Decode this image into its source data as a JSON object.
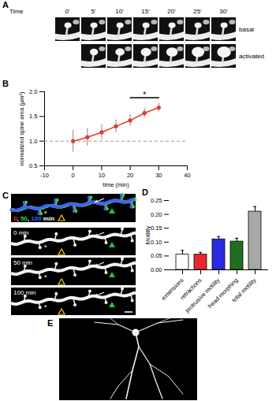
{
  "panel_A": {
    "panel": "A",
    "time_label": "Time",
    "times": [
      "0'",
      "5'",
      "10'",
      "15'",
      "20'",
      "25'",
      "30'"
    ],
    "rows": [
      "basal",
      "activated"
    ]
  },
  "panel_C": {
    "panel": "C",
    "merge_label_parts": [
      {
        "text": "0",
        "color": "#ff2020"
      },
      {
        "text": ", ",
        "color": "#ffffff"
      },
      {
        "text": "50",
        "color": "#20e020"
      },
      {
        "text": ", ",
        "color": "#ffffff"
      },
      {
        "text": "100",
        "color": "#4060ff"
      },
      {
        "text": " min",
        "color": "#ffffff"
      }
    ],
    "frames": [
      "0 min",
      "50 min",
      "100 min"
    ],
    "marker_text": "*"
  },
  "panel_E": {
    "panel": "E"
  },
  "chart_data": [
    {
      "panel": "B",
      "type": "line",
      "x": [
        0,
        5,
        10,
        15,
        20,
        25,
        30
      ],
      "values": [
        1.0,
        1.08,
        1.18,
        1.3,
        1.42,
        1.57,
        1.68
      ],
      "errors": [
        0.22,
        0.18,
        0.15,
        0.13,
        0.12,
        0.1,
        0.09
      ],
      "color": "#e8392d",
      "marker": "circle",
      "xlabel": "time (min)",
      "ylabel": "normalized spine area (µm²)",
      "xlim": [
        -10,
        40
      ],
      "xticks": [
        -10,
        0,
        10,
        20,
        30,
        40
      ],
      "ylim": [
        0.5,
        2.0
      ],
      "yticks": [
        0.5,
        {
          "value": 1.0,
          "label": "1.0"
        },
        1.5,
        {
          "value": 2.0,
          "label": "2.0"
        }
      ],
      "reference_y": 1,
      "significance": {
        "x1": 20,
        "x2": 30,
        "y": 1.88,
        "text": "*"
      }
    },
    {
      "panel": "D",
      "type": "bar",
      "categories": [
        "extensions",
        "retractions",
        "protrusive motility",
        "head morphing",
        "total motility"
      ],
      "values": [
        0.055,
        0.055,
        0.11,
        0.102,
        0.21
      ],
      "errors": [
        0.015,
        0.008,
        0.01,
        0.012,
        0.018
      ],
      "colors": [
        "#ffffff",
        "#e8282a",
        "#2a2ae0",
        "#1f6e1f",
        "#a8a8a8"
      ],
      "ylabel": "Motility",
      "ylim": [
        0,
        0.25
      ],
      "yticks": [
        {
          "value": 0,
          "label": "0.00"
        },
        {
          "value": 0.05,
          "label": "0.05"
        },
        {
          "value": 0.1,
          "label": "0.10"
        },
        {
          "value": 0.15,
          "label": "0.15"
        },
        {
          "value": 0.2,
          "label": "0.20"
        },
        {
          "value": 0.25,
          "label": "0.25"
        }
      ]
    }
  ]
}
